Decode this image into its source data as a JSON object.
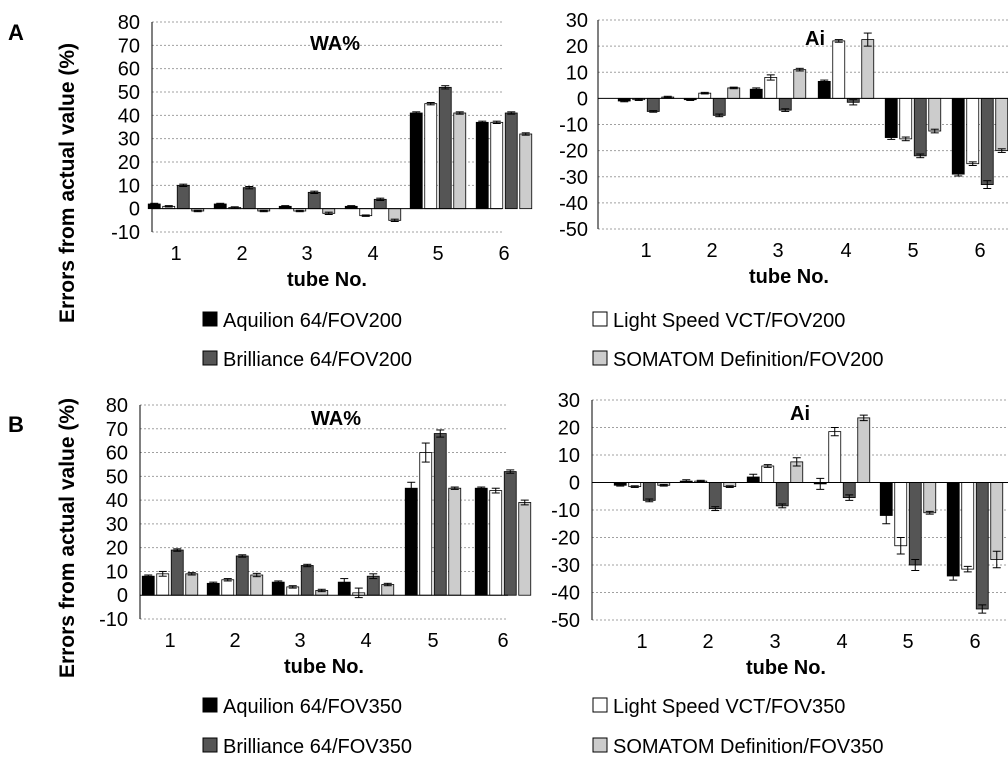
{
  "figure": {
    "panel_labels": [
      "A",
      "B"
    ],
    "ylabel": "Errors from actual value (%)"
  },
  "series_colors": [
    "#000000",
    "#ffffff",
    "#555555",
    "#cccccc"
  ],
  "chart_data": [
    {
      "type": "bar",
      "panel": "A",
      "title": "WA%",
      "xlabel": "tube No.",
      "ylabel": "Errors from actual value (%)",
      "categories": [
        "1",
        "2",
        "3",
        "4",
        "5",
        "6"
      ],
      "ylim": [
        -10,
        80
      ],
      "yticks": [
        -10,
        0,
        10,
        20,
        30,
        40,
        50,
        60,
        70,
        80
      ],
      "grid": true,
      "series": [
        {
          "name": "Aquilion 64/FOV200",
          "values": [
            2,
            2,
            1,
            1,
            41,
            37
          ],
          "errors": [
            0.3,
            0.3,
            0.3,
            0.3,
            0.5,
            0.5
          ]
        },
        {
          "name": "Light Speed VCT/FOV200",
          "values": [
            1,
            0.5,
            -1,
            -3,
            45,
            37
          ],
          "errors": [
            0.3,
            0.3,
            0.3,
            0.3,
            0.5,
            0.5
          ]
        },
        {
          "name": "Brilliance 64/FOV200",
          "values": [
            10,
            9,
            7,
            4,
            52,
            41
          ],
          "errors": [
            0.5,
            0.5,
            0.5,
            0.5,
            0.7,
            0.5
          ]
        },
        {
          "name": "SOMATOM Definition/FOV200",
          "values": [
            -1,
            -1,
            -2,
            -5,
            41,
            32
          ],
          "errors": [
            0.3,
            0.3,
            0.5,
            0.5,
            0.5,
            0.5
          ]
        }
      ]
    },
    {
      "type": "bar",
      "panel": "A",
      "title": "Ai",
      "xlabel": "tube No.",
      "ylabel": "",
      "categories": [
        "1",
        "2",
        "3",
        "4",
        "5",
        "6"
      ],
      "ylim": [
        -50,
        30
      ],
      "yticks": [
        -50,
        -40,
        -30,
        -20,
        -10,
        0,
        10,
        20,
        30
      ],
      "grid": true,
      "series": [
        {
          "name": "Aquilion 64/FOV200",
          "values": [
            -1,
            -0.5,
            3.5,
            6.5,
            -15,
            -29
          ],
          "errors": [
            0.3,
            0.3,
            0.5,
            0.5,
            0.7,
            0.7
          ]
        },
        {
          "name": "Light Speed VCT/FOV200",
          "values": [
            -0.5,
            2,
            8,
            22,
            -15.5,
            -25
          ],
          "errors": [
            0.3,
            0.3,
            1,
            0.5,
            0.7,
            0.7
          ]
        },
        {
          "name": "Brilliance 64/FOV200",
          "values": [
            -5,
            -6.5,
            -4.5,
            -1.5,
            -22,
            -33
          ],
          "errors": [
            0.3,
            0.5,
            0.5,
            1,
            0.7,
            1.5
          ]
        },
        {
          "name": "SOMATOM Definition/FOV200",
          "values": [
            0.5,
            4,
            11,
            22.5,
            -12.5,
            -20
          ],
          "errors": [
            0.3,
            0.3,
            0.5,
            2.5,
            0.7,
            0.7
          ]
        }
      ]
    },
    {
      "type": "bar",
      "panel": "B",
      "title": "WA%",
      "xlabel": "tube No.",
      "ylabel": "Errors from actual value (%)",
      "categories": [
        "1",
        "2",
        "3",
        "4",
        "5",
        "6"
      ],
      "ylim": [
        -10,
        80
      ],
      "yticks": [
        -10,
        0,
        10,
        20,
        30,
        40,
        50,
        60,
        70,
        80
      ],
      "grid": true,
      "series": [
        {
          "name": "Aquilion 64/FOV350",
          "values": [
            8,
            5,
            5.5,
            5.5,
            45,
            45
          ],
          "errors": [
            0.5,
            0.5,
            0.5,
            1.5,
            2.5,
            0.5
          ]
        },
        {
          "name": "Light Speed VCT/FOV350",
          "values": [
            9,
            6.5,
            3.5,
            1,
            60,
            44
          ],
          "errors": [
            1,
            0.5,
            0.5,
            2,
            4,
            1
          ]
        },
        {
          "name": "Brilliance 64/FOV350",
          "values": [
            19,
            16.5,
            12.5,
            8,
            68,
            52
          ],
          "errors": [
            0.5,
            0.5,
            0.5,
            1,
            1.5,
            0.7
          ]
        },
        {
          "name": "SOMATOM Definition/FOV350",
          "values": [
            9,
            8.5,
            2,
            4.5,
            45,
            39
          ],
          "errors": [
            0.5,
            0.7,
            0.5,
            0.5,
            0.5,
            1
          ]
        }
      ]
    },
    {
      "type": "bar",
      "panel": "B",
      "title": "Ai",
      "xlabel": "tube No.",
      "ylabel": "",
      "categories": [
        "1",
        "2",
        "3",
        "4",
        "5",
        "6"
      ],
      "ylim": [
        -50,
        30
      ],
      "yticks": [
        -50,
        -40,
        -30,
        -20,
        -10,
        0,
        10,
        20,
        30
      ],
      "grid": true,
      "series": [
        {
          "name": "Aquilion 64/FOV350",
          "values": [
            -1,
            0.5,
            2,
            -0.5,
            -12,
            -34
          ],
          "errors": [
            0.3,
            0.5,
            1,
            2,
            3,
            1.5
          ]
        },
        {
          "name": "Light Speed VCT/FOV350",
          "values": [
            -1.5,
            0.5,
            6,
            18.5,
            -23,
            -31.5
          ],
          "errors": [
            0.3,
            0.3,
            0.5,
            1.5,
            3,
            1
          ]
        },
        {
          "name": "Brilliance 64/FOV350",
          "values": [
            -6.5,
            -9.5,
            -8.5,
            -5.5,
            -30,
            -46
          ],
          "errors": [
            0.5,
            0.7,
            0.7,
            1,
            2,
            1.5
          ]
        },
        {
          "name": "SOMATOM Definition/FOV350",
          "values": [
            -1,
            -1.5,
            7.5,
            23.5,
            -11,
            -28
          ],
          "errors": [
            0.3,
            0.3,
            1.5,
            1,
            0.5,
            3
          ]
        }
      ]
    }
  ]
}
